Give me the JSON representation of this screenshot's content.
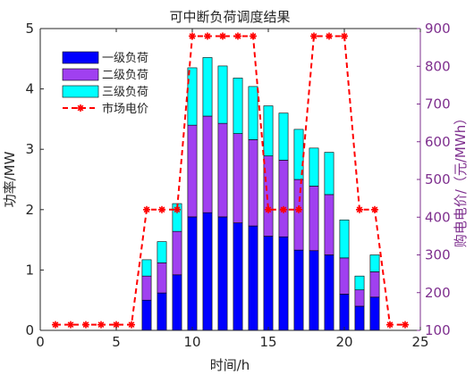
{
  "chart_data": {
    "type": "bar",
    "title": "可中断负荷调度结果",
    "xlabel": "时间/h",
    "ylabel": "功率/MW",
    "ylabel_right": "购电电价/（元/MWh）",
    "xlim": [
      0,
      25
    ],
    "ylim": [
      0,
      5
    ],
    "ylim_right": [
      100,
      900
    ],
    "x_ticks": [
      "0",
      "5",
      "10",
      "15",
      "20",
      "25"
    ],
    "y_ticks": [
      "0",
      "1",
      "2",
      "3",
      "4",
      "5"
    ],
    "y_ticks_right": [
      "100",
      "200",
      "300",
      "400",
      "500",
      "600",
      "700",
      "800",
      "900"
    ],
    "legend_position": "top-left",
    "x": [
      7,
      8,
      9,
      10,
      11,
      12,
      13,
      14,
      15,
      16,
      17,
      18,
      19,
      20,
      21,
      22
    ],
    "series": [
      {
        "name": "一级负荷",
        "color": "#0000FF",
        "stack": true,
        "values": [
          0.5,
          0.62,
          0.92,
          1.88,
          1.95,
          1.88,
          1.78,
          1.73,
          1.56,
          1.55,
          1.33,
          1.32,
          1.25,
          0.6,
          0.4,
          0.55
        ]
      },
      {
        "name": "二级负荷",
        "color": "#A040F0",
        "stack": true,
        "values": [
          0.4,
          0.5,
          0.72,
          1.52,
          1.6,
          1.55,
          1.48,
          1.43,
          1.33,
          1.27,
          1.17,
          1.07,
          1.0,
          0.6,
          0.27,
          0.42
        ]
      },
      {
        "name": "三级负荷",
        "color": "#00FFFF",
        "stack": true,
        "values": [
          0.27,
          0.35,
          0.46,
          0.95,
          0.97,
          0.95,
          0.92,
          0.88,
          0.83,
          0.78,
          0.83,
          0.63,
          0.7,
          0.63,
          0.23,
          0.28
        ]
      }
    ],
    "price_series": {
      "name": "市场电价",
      "color": "#FF0000",
      "style": "dashed-with-star-markers",
      "axis": "right",
      "x": [
        1,
        2,
        3,
        4,
        5,
        6,
        7,
        8,
        9,
        10,
        11,
        12,
        13,
        14,
        15,
        16,
        17,
        18,
        19,
        20,
        21,
        22,
        23,
        24
      ],
      "values": [
        115,
        115,
        115,
        115,
        115,
        115,
        420,
        420,
        420,
        880,
        880,
        880,
        880,
        880,
        420,
        420,
        420,
        880,
        880,
        880,
        420,
        420,
        115,
        115
      ]
    },
    "right_axis_color": "#7E2F8E"
  }
}
